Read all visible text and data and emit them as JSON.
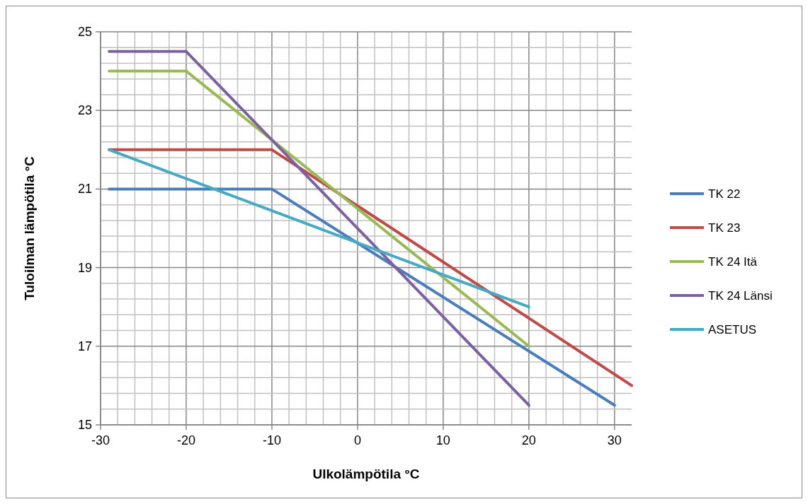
{
  "chart_data": {
    "type": "line",
    "xlabel": "Ulkolämpötila °C",
    "ylabel": "Tuloilman lämpötila °C",
    "xlim": [
      -30,
      32
    ],
    "xticks": [
      -30,
      {
        "value": -28,
        "label": null
      },
      {
        "value": -26,
        "label": null
      },
      {
        "value": -24,
        "label": null
      },
      {
        "value": -22,
        "label": null
      },
      -20,
      {
        "value": -18,
        "label": null
      },
      {
        "value": -16,
        "label": null
      },
      {
        "value": -14,
        "label": null
      },
      {
        "value": -12,
        "label": null
      },
      -10,
      {
        "value": -8,
        "label": null
      },
      {
        "value": -6,
        "label": null
      },
      {
        "value": -4,
        "label": null
      },
      {
        "value": -2,
        "label": null
      },
      0,
      {
        "value": 2,
        "label": null
      },
      {
        "value": 4,
        "label": null
      },
      {
        "value": 6,
        "label": null
      },
      {
        "value": 8,
        "label": null
      },
      10,
      {
        "value": 12,
        "label": null
      },
      {
        "value": 14,
        "label": null
      },
      {
        "value": 16,
        "label": null
      },
      {
        "value": 18,
        "label": null
      },
      20,
      {
        "value": 22,
        "label": null
      },
      {
        "value": 24,
        "label": null
      },
      {
        "value": 26,
        "label": null
      },
      {
        "value": 28,
        "label": null
      },
      30
    ],
    "ylim": [
      15,
      25
    ],
    "yticks": [
      15,
      {
        "value": 15.4,
        "label": null
      },
      {
        "value": 15.8,
        "label": null
      },
      {
        "value": 16.2,
        "label": null
      },
      {
        "value": 16.6,
        "label": null
      },
      17,
      {
        "value": 17.4,
        "label": null
      },
      {
        "value": 17.8,
        "label": null
      },
      {
        "value": 18.2,
        "label": null
      },
      {
        "value": 18.6,
        "label": null
      },
      19,
      {
        "value": 19.4,
        "label": null
      },
      {
        "value": 19.8,
        "label": null
      },
      {
        "value": 20.2,
        "label": null
      },
      {
        "value": 20.6,
        "label": null
      },
      21,
      {
        "value": 21.4,
        "label": null
      },
      {
        "value": 21.8,
        "label": null
      },
      {
        "value": 22.2,
        "label": null
      },
      {
        "value": 22.6,
        "label": null
      },
      23,
      {
        "value": 23.4,
        "label": null
      },
      {
        "value": 23.8,
        "label": null
      },
      {
        "value": 24.2,
        "label": null
      },
      {
        "value": 24.6,
        "label": null
      },
      25
    ],
    "grid": true,
    "legend": "right",
    "marker": "none",
    "line_style": "solid",
    "series": [
      {
        "name": "TK 22",
        "color": "#4a7ebb",
        "x": [
          -29,
          -10,
          30
        ],
        "values": [
          21,
          21,
          15.5
        ]
      },
      {
        "name": "TK 23",
        "color": "#be4b48",
        "x": [
          -29,
          -10,
          32
        ],
        "values": [
          22,
          22,
          16
        ]
      },
      {
        "name": "TK 24 Itä",
        "color": "#98b954",
        "x": [
          -29,
          -20,
          20
        ],
        "values": [
          24,
          24,
          17
        ]
      },
      {
        "name": "TK 24 Länsi",
        "color": "#7d60a0",
        "x": [
          -29,
          -20,
          20
        ],
        "values": [
          24.5,
          24.5,
          15.5
        ]
      },
      {
        "name": "ASETUS",
        "color": "#46aac5",
        "x": [
          -29,
          20
        ],
        "values": [
          22,
          18
        ]
      }
    ]
  }
}
